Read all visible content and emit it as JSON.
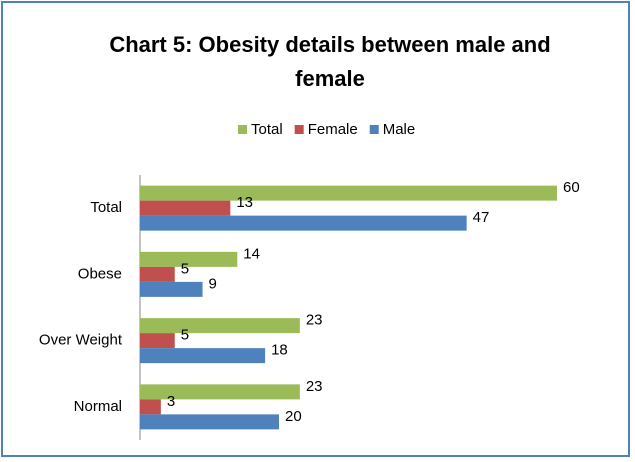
{
  "chart_data": {
    "type": "hbar",
    "title": "Chart 5: Obesity details between male and female",
    "categories": [
      "Total",
      "Obese",
      "Over Weight",
      "Normal"
    ],
    "series": [
      {
        "name": "Total",
        "color": "#9bbb59",
        "values": [
          60,
          14,
          23,
          23
        ]
      },
      {
        "name": "Female",
        "color": "#c0504d",
        "values": [
          13,
          5,
          5,
          3
        ]
      },
      {
        "name": "Male",
        "color": "#4f81bd",
        "values": [
          47,
          9,
          18,
          20
        ]
      }
    ],
    "xlim": [
      0,
      60
    ]
  }
}
